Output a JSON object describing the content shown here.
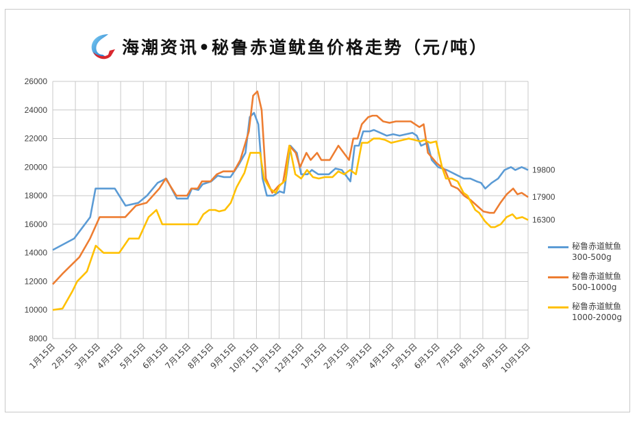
{
  "title": "海潮资讯•秘鲁赤道鱿鱼价格走势（元/吨）",
  "logo": "haichao-logo-icon",
  "chart_data": {
    "type": "line",
    "title": "海潮资讯•秘鲁赤道鱿鱼价格走势（元/吨）",
    "xlabel": "",
    "ylabel": "",
    "ylim": [
      8000,
      26000
    ],
    "yticks": [
      8000,
      10000,
      12000,
      14000,
      16000,
      18000,
      20000,
      22000,
      24000,
      26000
    ],
    "categories": [
      "1月15日",
      "2月15日",
      "3月15日",
      "4月15日",
      "5月15日",
      "6月15日",
      "7月15日",
      "8月15日",
      "9月15日",
      "10月15日",
      "11月15日",
      "12月15日",
      "1月15日",
      "2月15日",
      "3月15日",
      "4月15日",
      "5月15日",
      "6月15日",
      "7月15日",
      "8月15日",
      "9月15日",
      "10月15日"
    ],
    "grid": true,
    "legend_position": "right",
    "series": [
      {
        "name": "秘鲁赤道鱿鱼300-500g",
        "color": "#5b9bd5",
        "end_label": "19800",
        "points": [
          [
            0,
            14200
          ],
          [
            1,
            15000
          ],
          [
            1.25,
            15500
          ],
          [
            1.75,
            16500
          ],
          [
            2.0,
            18500
          ],
          [
            2.9,
            18500
          ],
          [
            3.4,
            17300
          ],
          [
            4.0,
            17500
          ],
          [
            4.4,
            18000
          ],
          [
            4.9,
            18900
          ],
          [
            5.3,
            19200
          ],
          [
            5.8,
            17800
          ],
          [
            6.3,
            17800
          ],
          [
            6.5,
            18500
          ],
          [
            6.8,
            18400
          ],
          [
            7.0,
            18800
          ],
          [
            7.4,
            19000
          ],
          [
            7.7,
            19400
          ],
          [
            8.0,
            19300
          ],
          [
            8.3,
            19300
          ],
          [
            8.7,
            20200
          ],
          [
            9.0,
            21000
          ],
          [
            9.2,
            23500
          ],
          [
            9.4,
            23800
          ],
          [
            9.6,
            23000
          ],
          [
            9.8,
            19200
          ],
          [
            10.0,
            18000
          ],
          [
            10.3,
            18000
          ],
          [
            10.6,
            18300
          ],
          [
            10.8,
            18200
          ],
          [
            11.1,
            21500
          ],
          [
            11.4,
            21000
          ],
          [
            11.6,
            19500
          ],
          [
            11.9,
            19500
          ],
          [
            12.1,
            19800
          ],
          [
            12.4,
            19500
          ],
          [
            12.9,
            19500
          ],
          [
            13.2,
            19900
          ],
          [
            13.5,
            19800
          ],
          [
            13.9,
            19000
          ],
          [
            14.1,
            21500
          ],
          [
            14.3,
            21500
          ],
          [
            14.5,
            22500
          ],
          [
            14.8,
            22500
          ],
          [
            15.0,
            22600
          ],
          [
            15.3,
            22400
          ],
          [
            15.6,
            22200
          ],
          [
            15.9,
            22300
          ],
          [
            16.2,
            22200
          ],
          [
            16.5,
            22300
          ],
          [
            16.8,
            22400
          ],
          [
            17.0,
            22200
          ],
          [
            17.2,
            21500
          ],
          [
            17.5,
            21700
          ],
          [
            17.7,
            20500
          ],
          [
            18.0,
            20000
          ],
          [
            18.4,
            19800
          ],
          [
            18.8,
            19500
          ],
          [
            19.2,
            19200
          ],
          [
            19.5,
            19200
          ],
          [
            19.8,
            19000
          ],
          [
            20.0,
            18900
          ],
          [
            20.2,
            18500
          ],
          [
            20.5,
            18900
          ],
          [
            20.8,
            19200
          ],
          [
            21.1,
            19800
          ],
          [
            21.4,
            20000
          ],
          [
            21.6,
            19800
          ],
          [
            21.9,
            20000
          ],
          [
            22.2,
            19800
          ]
        ]
      },
      {
        "name": "秘鲁赤道鱿鱼500-1000g",
        "color": "#ed7d31",
        "end_label": "17900",
        "points": [
          [
            0,
            11800
          ],
          [
            0.5,
            12600
          ],
          [
            1.25,
            13700
          ],
          [
            1.75,
            15000
          ],
          [
            2.2,
            16500
          ],
          [
            3.4,
            16500
          ],
          [
            3.9,
            17300
          ],
          [
            4.4,
            17500
          ],
          [
            5.0,
            18500
          ],
          [
            5.3,
            19200
          ],
          [
            5.8,
            18000
          ],
          [
            6.3,
            18000
          ],
          [
            6.5,
            18500
          ],
          [
            6.8,
            18500
          ],
          [
            7.0,
            19000
          ],
          [
            7.4,
            19000
          ],
          [
            7.7,
            19500
          ],
          [
            8.0,
            19700
          ],
          [
            8.3,
            19700
          ],
          [
            8.5,
            19700
          ],
          [
            8.8,
            20500
          ],
          [
            9.0,
            21500
          ],
          [
            9.2,
            22500
          ],
          [
            9.4,
            25000
          ],
          [
            9.6,
            25300
          ],
          [
            9.8,
            24000
          ],
          [
            10.0,
            19200
          ],
          [
            10.3,
            18200
          ],
          [
            10.6,
            18700
          ],
          [
            10.8,
            18900
          ],
          [
            11.1,
            21500
          ],
          [
            11.4,
            21000
          ],
          [
            11.6,
            20000
          ],
          [
            11.9,
            21000
          ],
          [
            12.1,
            20500
          ],
          [
            12.4,
            21000
          ],
          [
            12.6,
            20500
          ],
          [
            13.0,
            20500
          ],
          [
            13.4,
            21500
          ],
          [
            13.9,
            20500
          ],
          [
            14.1,
            22000
          ],
          [
            14.3,
            22000
          ],
          [
            14.5,
            23000
          ],
          [
            14.8,
            23500
          ],
          [
            15.0,
            23600
          ],
          [
            15.2,
            23600
          ],
          [
            15.5,
            23200
          ],
          [
            15.8,
            23100
          ],
          [
            16.1,
            23200
          ],
          [
            16.5,
            23200
          ],
          [
            16.8,
            23200
          ],
          [
            17.0,
            23000
          ],
          [
            17.2,
            22800
          ],
          [
            17.4,
            23000
          ],
          [
            17.6,
            21000
          ],
          [
            18.0,
            20300
          ],
          [
            18.4,
            19800
          ],
          [
            18.7,
            18700
          ],
          [
            19.0,
            18500
          ],
          [
            19.3,
            18000
          ],
          [
            19.6,
            17700
          ],
          [
            19.9,
            17300
          ],
          [
            20.2,
            16900
          ],
          [
            20.5,
            16800
          ],
          [
            20.7,
            16800
          ],
          [
            21.0,
            17500
          ],
          [
            21.3,
            18100
          ],
          [
            21.6,
            18500
          ],
          [
            21.8,
            18100
          ],
          [
            22.0,
            18200
          ],
          [
            22.3,
            17900
          ]
        ]
      },
      {
        "name": "秘鲁赤道鱿鱼1000-2000g",
        "color": "#ffc000",
        "end_label": "16300",
        "points": [
          [
            0,
            10000
          ],
          [
            0.5,
            10100
          ],
          [
            1.0,
            11300
          ],
          [
            1.25,
            12000
          ],
          [
            1.75,
            12700
          ],
          [
            2.2,
            14500
          ],
          [
            2.6,
            14000
          ],
          [
            3.4,
            14000
          ],
          [
            3.9,
            15000
          ],
          [
            4.4,
            15000
          ],
          [
            4.9,
            16500
          ],
          [
            5.3,
            17000
          ],
          [
            5.6,
            16000
          ],
          [
            6.3,
            16000
          ],
          [
            7.0,
            16000
          ],
          [
            7.4,
            16000
          ],
          [
            7.7,
            16700
          ],
          [
            8.0,
            17000
          ],
          [
            8.3,
            17000
          ],
          [
            8.5,
            16900
          ],
          [
            8.8,
            17000
          ],
          [
            9.1,
            17500
          ],
          [
            9.4,
            18600
          ],
          [
            9.8,
            19600
          ],
          [
            10.1,
            21000
          ],
          [
            10.6,
            21000
          ],
          [
            10.8,
            19200
          ],
          [
            11.1,
            18500
          ],
          [
            11.4,
            18200
          ],
          [
            11.6,
            18700
          ],
          [
            11.9,
            19100
          ],
          [
            12.1,
            21500
          ],
          [
            12.4,
            19500
          ],
          [
            12.7,
            19200
          ],
          [
            13.0,
            19800
          ],
          [
            13.3,
            19300
          ],
          [
            13.6,
            19200
          ],
          [
            13.9,
            19300
          ],
          [
            14.3,
            19300
          ],
          [
            14.6,
            19700
          ],
          [
            14.9,
            19500
          ],
          [
            15.2,
            19800
          ],
          [
            15.5,
            19500
          ],
          [
            15.8,
            21700
          ],
          [
            16.1,
            21700
          ],
          [
            16.4,
            22000
          ],
          [
            16.7,
            22000
          ],
          [
            17.0,
            21900
          ],
          [
            17.3,
            21700
          ],
          [
            17.6,
            21800
          ],
          [
            17.9,
            21900
          ],
          [
            18.2,
            22000
          ],
          [
            18.5,
            21900
          ],
          [
            18.8,
            21800
          ],
          [
            19.0,
            21900
          ],
          [
            19.3,
            21700
          ],
          [
            19.6,
            21800
          ],
          [
            19.9,
            20000
          ],
          [
            20.1,
            19200
          ],
          [
            20.4,
            19200
          ],
          [
            20.7,
            19000
          ],
          [
            21.0,
            18200
          ],
          [
            21.2,
            18000
          ],
          [
            21.6,
            17000
          ],
          [
            21.8,
            16800
          ],
          [
            22.1,
            16200
          ],
          [
            22.4,
            15800
          ],
          [
            22.6,
            15800
          ],
          [
            22.9,
            16000
          ],
          [
            23.2,
            16500
          ],
          [
            23.5,
            16700
          ],
          [
            23.7,
            16400
          ],
          [
            24.0,
            16500
          ],
          [
            24.3,
            16300
          ]
        ]
      }
    ]
  },
  "legend": {
    "items": [
      {
        "line1": "秘鲁赤道鱿鱼",
        "line2": "300-500g",
        "color": "#5b9bd5"
      },
      {
        "line1": "秘鲁赤道鱿鱼",
        "line2": "500-1000g",
        "color": "#ed7d31"
      },
      {
        "line1": "秘鲁赤道鱿鱼",
        "line2": "1000-2000g",
        "color": "#ffc000"
      }
    ]
  }
}
